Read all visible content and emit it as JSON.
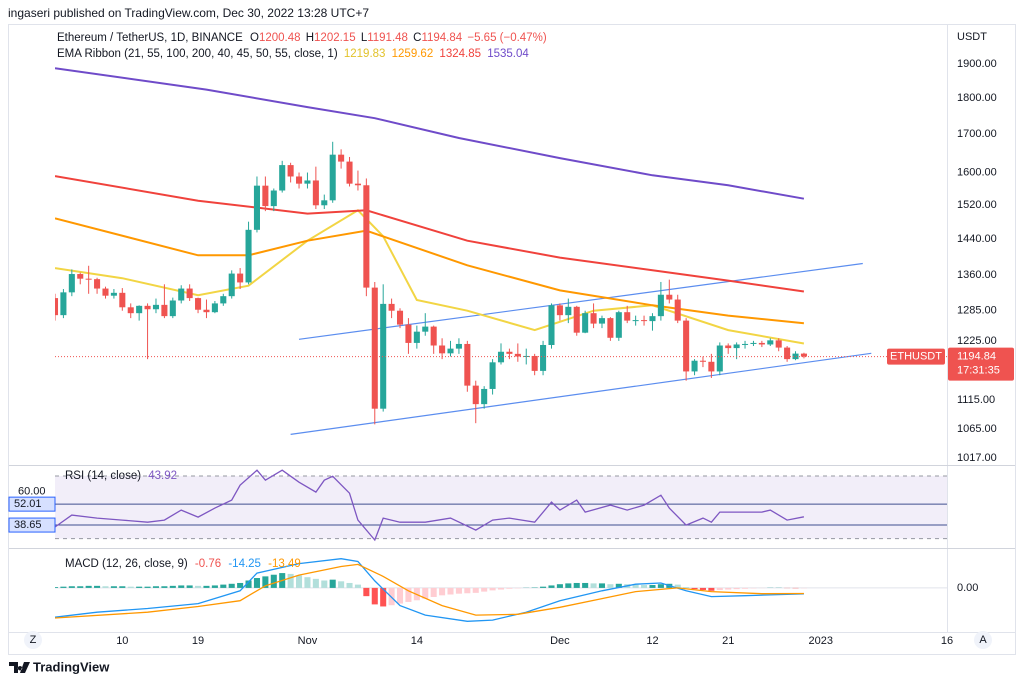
{
  "header": {
    "publisher": "ingaseri published on TradingView.com, Dec 30, 2022 13:28 UTC+7"
  },
  "buttons": {
    "left": "Z",
    "right": "A"
  },
  "footer": {
    "brand": "TradingView"
  },
  "chart_data": [
    {
      "type": "candlestick",
      "title": "Ethereum / TetherUS, 1D, BINANCE",
      "ohlc_labels": [
        "O",
        "H",
        "L",
        "C"
      ],
      "change_label": "−5.65 (−0.47%)",
      "categories": [
        "2022-10-02",
        "2022-10-03",
        "2022-10-04",
        "2022-10-05",
        "2022-10-06",
        "2022-10-07",
        "2022-10-08",
        "2022-10-09",
        "2022-10-10",
        "2022-10-11",
        "2022-10-12",
        "2022-10-13",
        "2022-10-14",
        "2022-10-15",
        "2022-10-16",
        "2022-10-17",
        "2022-10-18",
        "2022-10-19",
        "2022-10-20",
        "2022-10-21",
        "2022-10-22",
        "2022-10-23",
        "2022-10-24",
        "2022-10-25",
        "2022-10-26",
        "2022-10-27",
        "2022-10-28",
        "2022-10-29",
        "2022-10-30",
        "2022-10-31",
        "2022-11-01",
        "2022-11-02",
        "2022-11-03",
        "2022-11-04",
        "2022-11-05",
        "2022-11-06",
        "2022-11-07",
        "2022-11-08",
        "2022-11-09",
        "2022-11-10",
        "2022-11-11",
        "2022-11-12",
        "2022-11-13",
        "2022-11-14",
        "2022-11-15",
        "2022-11-16",
        "2022-11-17",
        "2022-11-18",
        "2022-11-19",
        "2022-11-20",
        "2022-11-21",
        "2022-11-22",
        "2022-11-23",
        "2022-11-24",
        "2022-11-25",
        "2022-11-26",
        "2022-11-27",
        "2022-11-28",
        "2022-11-29",
        "2022-11-30",
        "2022-12-01",
        "2022-12-02",
        "2022-12-03",
        "2022-12-04",
        "2022-12-05",
        "2022-12-06",
        "2022-12-07",
        "2022-12-08",
        "2022-12-09",
        "2022-12-10",
        "2022-12-11",
        "2022-12-12",
        "2022-12-13",
        "2022-12-14",
        "2022-12-15",
        "2022-12-16",
        "2022-12-17",
        "2022-12-18",
        "2022-12-19",
        "2022-12-20",
        "2022-12-21",
        "2022-12-22",
        "2022-12-23",
        "2022-12-24",
        "2022-12-25",
        "2022-12-26",
        "2022-12-27",
        "2022-12-28",
        "2022-12-29",
        "2022-12-30"
      ],
      "open": [
        1311,
        1276,
        1323,
        1362,
        1352,
        1351,
        1331,
        1316,
        1322,
        1292,
        1280,
        1295,
        1288,
        1297,
        1274,
        1306,
        1331,
        1311,
        1287,
        1282,
        1300,
        1315,
        1363,
        1344,
        1461,
        1567,
        1517,
        1555,
        1619,
        1590,
        1572,
        1580,
        1519,
        1531,
        1646,
        1628,
        1572,
        1568,
        1333,
        1100,
        1299,
        1285,
        1257,
        1221,
        1243,
        1253,
        1216,
        1201,
        1210,
        1219,
        1141,
        1108,
        1135,
        1184,
        1204,
        1200,
        1195,
        1196,
        1168,
        1217,
        1296,
        1276,
        1293,
        1241,
        1280,
        1259,
        1270,
        1231,
        1282,
        1265,
        1266,
        1264,
        1274,
        1318,
        1308,
        1265,
        1167,
        1187,
        1185,
        1167,
        1216,
        1211,
        1218,
        1219,
        1221,
        1218,
        1226,
        1212,
        1190,
        1200.48
      ],
      "high": [
        1320,
        1330,
        1372,
        1365,
        1380,
        1354,
        1335,
        1330,
        1332,
        1300,
        1296,
        1300,
        1310,
        1340,
        1312,
        1338,
        1340,
        1312,
        1308,
        1305,
        1320,
        1370,
        1375,
        1480,
        1590,
        1590,
        1560,
        1630,
        1625,
        1600,
        1600,
        1615,
        1545,
        1680,
        1660,
        1640,
        1605,
        1585,
        1345,
        1340,
        1310,
        1290,
        1270,
        1255,
        1280,
        1255,
        1230,
        1225,
        1230,
        1225,
        1150,
        1140,
        1190,
        1220,
        1210,
        1220,
        1210,
        1200,
        1225,
        1300,
        1300,
        1310,
        1295,
        1285,
        1300,
        1275,
        1272,
        1285,
        1295,
        1275,
        1275,
        1280,
        1345,
        1350,
        1318,
        1270,
        1190,
        1195,
        1200,
        1222,
        1220,
        1222,
        1225,
        1225,
        1225,
        1230,
        1230,
        1215,
        1205,
        1202.15
      ],
      "low": [
        1265,
        1270,
        1315,
        1340,
        1320,
        1320,
        1310,
        1310,
        1285,
        1270,
        1265,
        1190,
        1280,
        1270,
        1270,
        1300,
        1305,
        1280,
        1270,
        1280,
        1295,
        1310,
        1330,
        1340,
        1455,
        1505,
        1505,
        1550,
        1575,
        1560,
        1560,
        1510,
        1510,
        1525,
        1610,
        1565,
        1555,
        1315,
        1073,
        1095,
        1270,
        1250,
        1200,
        1210,
        1235,
        1200,
        1190,
        1195,
        1200,
        1130,
        1075,
        1100,
        1125,
        1180,
        1190,
        1185,
        1180,
        1160,
        1160,
        1210,
        1265,
        1260,
        1235,
        1240,
        1250,
        1250,
        1225,
        1225,
        1260,
        1255,
        1255,
        1245,
        1265,
        1300,
        1260,
        1150,
        1160,
        1175,
        1155,
        1160,
        1200,
        1190,
        1210,
        1215,
        1213,
        1215,
        1205,
        1185,
        1188,
        1191.48
      ],
      "close": [
        1276,
        1323,
        1362,
        1352,
        1351,
        1331,
        1316,
        1322,
        1292,
        1280,
        1295,
        1288,
        1297,
        1274,
        1306,
        1331,
        1311,
        1287,
        1282,
        1300,
        1315,
        1363,
        1344,
        1461,
        1567,
        1517,
        1555,
        1619,
        1590,
        1572,
        1580,
        1519,
        1531,
        1646,
        1628,
        1572,
        1568,
        1333,
        1100,
        1299,
        1285,
        1257,
        1221,
        1243,
        1253,
        1216,
        1201,
        1210,
        1219,
        1141,
        1108,
        1135,
        1184,
        1204,
        1200,
        1195,
        1196,
        1168,
        1217,
        1296,
        1276,
        1293,
        1241,
        1280,
        1259,
        1270,
        1231,
        1282,
        1265,
        1266,
        1264,
        1274,
        1318,
        1308,
        1265,
        1167,
        1187,
        1185,
        1167,
        1216,
        1211,
        1218,
        1219,
        1221,
        1218,
        1226,
        1212,
        1190,
        1200.48,
        1194.84
      ],
      "up_color": "#26a69a",
      "down_color": "#ef5350",
      "log_scale": true,
      "y_unit": "USDT",
      "ylim": [
        1006,
        2006
      ],
      "yticks": [
        {
          "value": 1900,
          "label": "1900.00"
        },
        {
          "value": 1800,
          "label": "1800.00"
        },
        {
          "value": 1700,
          "label": "1700.00"
        },
        {
          "value": 1600,
          "label": "1600.00"
        },
        {
          "value": 1520,
          "label": "1520.00"
        },
        {
          "value": 1440,
          "label": "1440.00"
        },
        {
          "value": 1360,
          "label": "1360.00"
        },
        {
          "value": 1285,
          "label": "1285.00"
        },
        {
          "value": 1225,
          "label": "1225.00"
        },
        {
          "value": 1115,
          "label": "1115.00"
        },
        {
          "value": 1065,
          "label": "1065.00"
        },
        {
          "value": 1017,
          "label": "1017.00"
        }
      ],
      "xlim": [
        "2022-10-02",
        "2023-01-16"
      ],
      "xticks": [
        {
          "value": "2022-10-10",
          "label": "10"
        },
        {
          "value": "2022-10-19",
          "label": "19"
        },
        {
          "value": "2022-11-01",
          "label": "Nov"
        },
        {
          "value": "2022-11-14",
          "label": "14"
        },
        {
          "value": "2022-12-01",
          "label": "Dec"
        },
        {
          "value": "2022-12-12",
          "label": "12"
        },
        {
          "value": "2022-12-21",
          "label": "21"
        },
        {
          "value": "2023-01-01",
          "label": "2023"
        },
        {
          "value": "2023-01-16",
          "label": "16"
        }
      ],
      "overlay_title": "EMA Ribbon (21, 55, 100, 200, 40, 45, 50, 55, close, 1)",
      "series": [
        {
          "color": "#f2d544",
          "x": [
            "2022-10-02",
            "2022-10-10",
            "2022-10-19",
            "2022-10-25",
            "2022-11-01",
            "2022-11-07",
            "2022-11-10",
            "2022-11-14",
            "2022-11-20",
            "2022-11-28",
            "2022-12-05",
            "2022-12-12",
            "2022-12-21",
            "2022-12-30"
          ],
          "values": [
            1375,
            1353,
            1317,
            1337,
            1436,
            1507,
            1446,
            1307,
            1285,
            1246,
            1285,
            1296,
            1246,
            1219.83
          ]
        },
        {
          "color": "#ff9800",
          "x": [
            "2022-10-02",
            "2022-10-19",
            "2022-10-25",
            "2022-11-01",
            "2022-11-08",
            "2022-11-20",
            "2022-12-01",
            "2022-12-12",
            "2022-12-21",
            "2022-12-30"
          ],
          "values": [
            1488,
            1403,
            1403,
            1436,
            1459,
            1381,
            1327,
            1296,
            1275,
            1259.62
          ]
        },
        {
          "color": "#f0423c",
          "x": [
            "2022-10-02",
            "2022-10-19",
            "2022-11-01",
            "2022-11-08",
            "2022-11-20",
            "2022-12-01",
            "2022-12-12",
            "2022-12-21",
            "2022-12-30"
          ],
          "values": [
            1591,
            1530,
            1499,
            1507,
            1436,
            1398,
            1370,
            1348,
            1324.85
          ]
        },
        {
          "color": "#6f4bc9",
          "x": [
            "2022-10-02",
            "2022-10-20",
            "2022-11-01",
            "2022-11-09",
            "2022-11-19",
            "2022-12-01",
            "2022-12-12",
            "2022-12-21",
            "2022-12-30"
          ],
          "values": [
            1888,
            1825,
            1775,
            1744,
            1690,
            1637,
            1593,
            1568,
            1535.04
          ]
        }
      ],
      "trendlines": [
        {
          "color": "#5b8def",
          "x": [
            "2022-10-31",
            "2023-01-06"
          ],
          "values": [
            1228,
            1385
          ]
        },
        {
          "color": "#5b8def",
          "x": [
            "2022-10-30",
            "2023-01-07"
          ],
          "values": [
            1056,
            1201
          ]
        }
      ],
      "price_tag": {
        "symbol": "ETHUSDT",
        "countdown": "17:31:35"
      }
    },
    {
      "type": "line",
      "title": "RSI (14, close)",
      "color": "#7e57c2",
      "x": [
        "2022-10-02",
        "2022-10-04",
        "2022-10-07",
        "2022-10-10",
        "2022-10-13",
        "2022-10-15",
        "2022-10-17",
        "2022-10-19",
        "2022-10-21",
        "2022-10-23",
        "2022-10-24",
        "2022-10-26",
        "2022-10-27",
        "2022-10-29",
        "2022-10-31",
        "2022-11-02",
        "2022-11-03",
        "2022-11-04",
        "2022-11-06",
        "2022-11-07",
        "2022-11-09",
        "2022-11-10",
        "2022-11-12",
        "2022-11-15",
        "2022-11-18",
        "2022-11-21",
        "2022-11-23",
        "2022-11-25",
        "2022-11-28",
        "2022-11-30",
        "2022-12-01",
        "2022-12-03",
        "2022-12-04",
        "2022-12-07",
        "2022-12-09",
        "2022-12-11",
        "2022-12-13",
        "2022-12-14",
        "2022-12-16",
        "2022-12-18",
        "2022-12-19",
        "2022-12-20",
        "2022-12-25",
        "2022-12-26",
        "2022-12-28",
        "2022-12-30"
      ],
      "values": [
        37.4,
        45.0,
        43.1,
        41.8,
        40.5,
        41.8,
        48.2,
        43.7,
        49.5,
        54.6,
        64.1,
        73.7,
        67.3,
        73.7,
        66.0,
        59.7,
        67.3,
        69.8,
        59.0,
        41.8,
        29.1,
        43.1,
        40.5,
        40.5,
        43.1,
        35.4,
        41.8,
        43.1,
        40.5,
        53.3,
        48.2,
        54.6,
        46.9,
        51.4,
        48.2,
        51.4,
        57.7,
        49.5,
        38.6,
        43.1,
        40.5,
        46.9,
        46.9,
        48.2,
        41.8,
        43.92
      ],
      "ylim": [
        24,
        77
      ],
      "yticks": [
        {
          "value": 60,
          "label": "60.00"
        }
      ],
      "band": [
        30,
        70
      ],
      "levels": [
        {
          "value": 52.01,
          "label": "52.01"
        },
        {
          "value": 38.65,
          "label": "38.65"
        }
      ]
    },
    {
      "type": "macd",
      "title": "MACD (12, 26, close, 9)",
      "histogram": {
        "colors": [
          "#26a69a",
          "#b2dfdb",
          "#ffcdd2",
          "#ff5252"
        ],
        "values": [
          2,
          3,
          4,
          4,
          5,
          5,
          4,
          4,
          4,
          3,
          3,
          3,
          4,
          4,
          5,
          6,
          6,
          5,
          5,
          6,
          8,
          10,
          12,
          18,
          24,
          28,
          32,
          36,
          34,
          30,
          26,
          22,
          18,
          20,
          16,
          12,
          8,
          -20,
          -40,
          -45,
          -42,
          -38,
          -34,
          -30,
          -26,
          -22,
          -18,
          -16,
          -14,
          -13,
          -12,
          -9,
          -6,
          -4,
          -2,
          -1,
          0.5,
          1,
          3,
          6,
          9,
          11,
          12,
          12,
          11,
          11,
          9,
          10,
          9,
          8,
          7,
          7,
          9,
          10,
          8,
          2,
          -3,
          -5,
          -7,
          -5,
          -4,
          -3,
          -2,
          -1,
          -0.5,
          0.5,
          0.5,
          -0.5,
          -0.8,
          -0.76
        ]
      },
      "series": [
        {
          "color": "#2196f3",
          "x": [
            "2022-10-02",
            "2022-10-07",
            "2022-10-13",
            "2022-10-19",
            "2022-10-24",
            "2022-10-26",
            "2022-10-31",
            "2022-11-05",
            "2022-11-07",
            "2022-11-09",
            "2022-11-12",
            "2022-11-15",
            "2022-11-20",
            "2022-11-23",
            "2022-11-27",
            "2022-12-01",
            "2022-12-06",
            "2022-12-10",
            "2022-12-13",
            "2022-12-16",
            "2022-12-19",
            "2022-12-23",
            "2022-12-30"
          ],
          "values": [
            -71,
            -59,
            -50,
            -38,
            -7,
            36,
            59,
            71,
            64,
            17,
            -43,
            -66,
            -81,
            -78,
            -59,
            -31,
            -7,
            9,
            12,
            -7,
            -21,
            -19,
            -14.25
          ]
        },
        {
          "color": "#ff9800",
          "x": [
            "2022-10-02",
            "2022-10-13",
            "2022-10-19",
            "2022-10-24",
            "2022-10-27",
            "2022-10-31",
            "2022-11-05",
            "2022-11-07",
            "2022-11-10",
            "2022-11-13",
            "2022-11-17",
            "2022-11-21",
            "2022-11-26",
            "2022-12-01",
            "2022-12-06",
            "2022-12-10",
            "2022-12-15",
            "2022-12-19",
            "2022-12-25",
            "2022-12-30"
          ],
          "values": [
            -73,
            -59,
            -45,
            -31,
            5,
            31,
            52,
            57,
            28,
            -7,
            -43,
            -66,
            -64,
            -47,
            -26,
            -9,
            0,
            -9,
            -14,
            -13.49
          ]
        }
      ],
      "ylim": [
        -107,
        92
      ],
      "yticks": [
        {
          "value": 0,
          "label": "0.00"
        }
      ]
    }
  ]
}
